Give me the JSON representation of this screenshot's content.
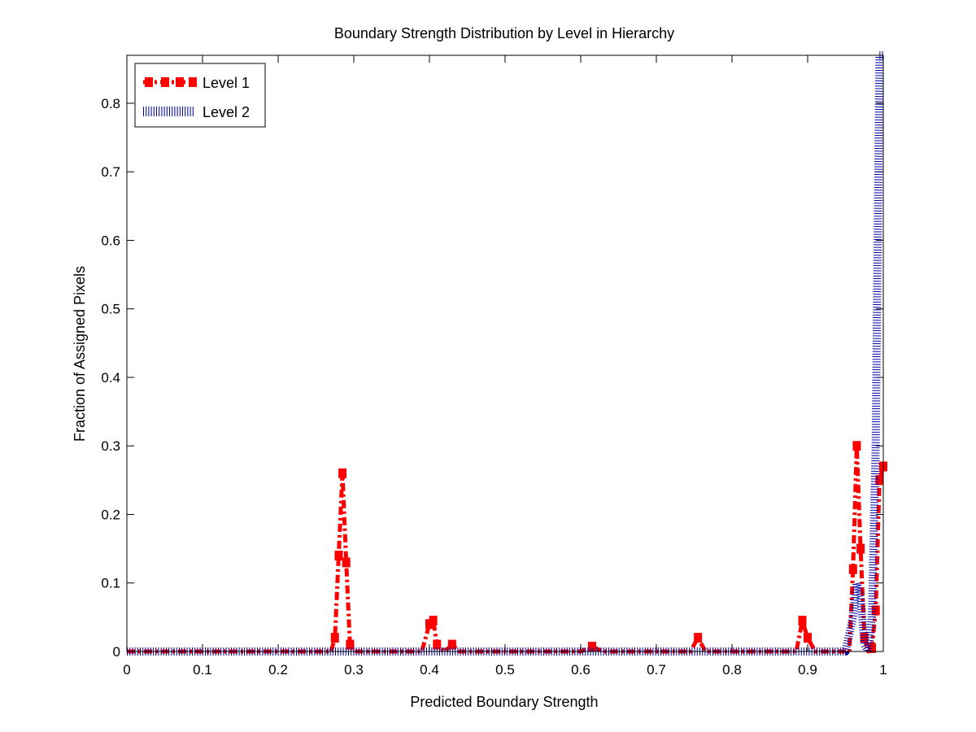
{
  "chart_data": {
    "type": "line",
    "title": "Boundary Strength Distribution by Level in Hierarchy",
    "xlabel": "Predicted Boundary Strength",
    "ylabel": "Fraction of Assigned Pixels",
    "xlim": [
      0,
      1
    ],
    "ylim": [
      0,
      0.87
    ],
    "xticks": [
      0,
      0.1,
      0.2,
      0.3,
      0.4,
      0.5,
      0.6,
      0.7,
      0.8,
      0.9,
      1
    ],
    "xtick_labels": [
      "0",
      "0.1",
      "0.2",
      "0.3",
      "0.4",
      "0.5",
      "0.6",
      "0.7",
      "0.8",
      "0.9",
      "1"
    ],
    "yticks": [
      0,
      0.1,
      0.2,
      0.3,
      0.4,
      0.5,
      0.6,
      0.7,
      0.8
    ],
    "ytick_labels": [
      "0",
      "0.1",
      "0.2",
      "0.3",
      "0.4",
      "0.5",
      "0.6",
      "0.7",
      "0.8"
    ],
    "grid": false,
    "legend_position": "top-left",
    "series": [
      {
        "name": "Level 1",
        "color": "#ff0000",
        "style": "dash-dot-square",
        "x": [
          0.0,
          0.27,
          0.275,
          0.28,
          0.285,
          0.29,
          0.295,
          0.3,
          0.39,
          0.4,
          0.405,
          0.41,
          0.42,
          0.43,
          0.44,
          0.6,
          0.615,
          0.63,
          0.745,
          0.755,
          0.765,
          0.885,
          0.893,
          0.9,
          0.91,
          0.955,
          0.96,
          0.965,
          0.97,
          0.975,
          0.98,
          0.985,
          0.99,
          0.995,
          1.0
        ],
        "y": [
          0.0,
          0.0,
          0.02,
          0.14,
          0.26,
          0.13,
          0.01,
          0.0,
          0.0,
          0.04,
          0.045,
          0.01,
          0.0,
          0.01,
          0.0,
          0.0,
          0.007,
          0.0,
          0.0,
          0.02,
          0.0,
          0.0,
          0.045,
          0.02,
          0.0,
          0.0,
          0.12,
          0.3,
          0.15,
          0.02,
          0.0,
          0.005,
          0.06,
          0.25,
          0.27
        ]
      },
      {
        "name": "Level 2",
        "color": "#0000a0",
        "style": "dotted",
        "x": [
          0.0,
          0.95,
          0.96,
          0.965,
          0.97,
          0.975,
          0.98,
          0.985,
          0.99,
          0.995,
          1.0
        ],
        "y": [
          0.0,
          0.0,
          0.05,
          0.1,
          0.08,
          0.01,
          0.0,
          0.05,
          0.3,
          0.87,
          0.87
        ]
      }
    ]
  }
}
